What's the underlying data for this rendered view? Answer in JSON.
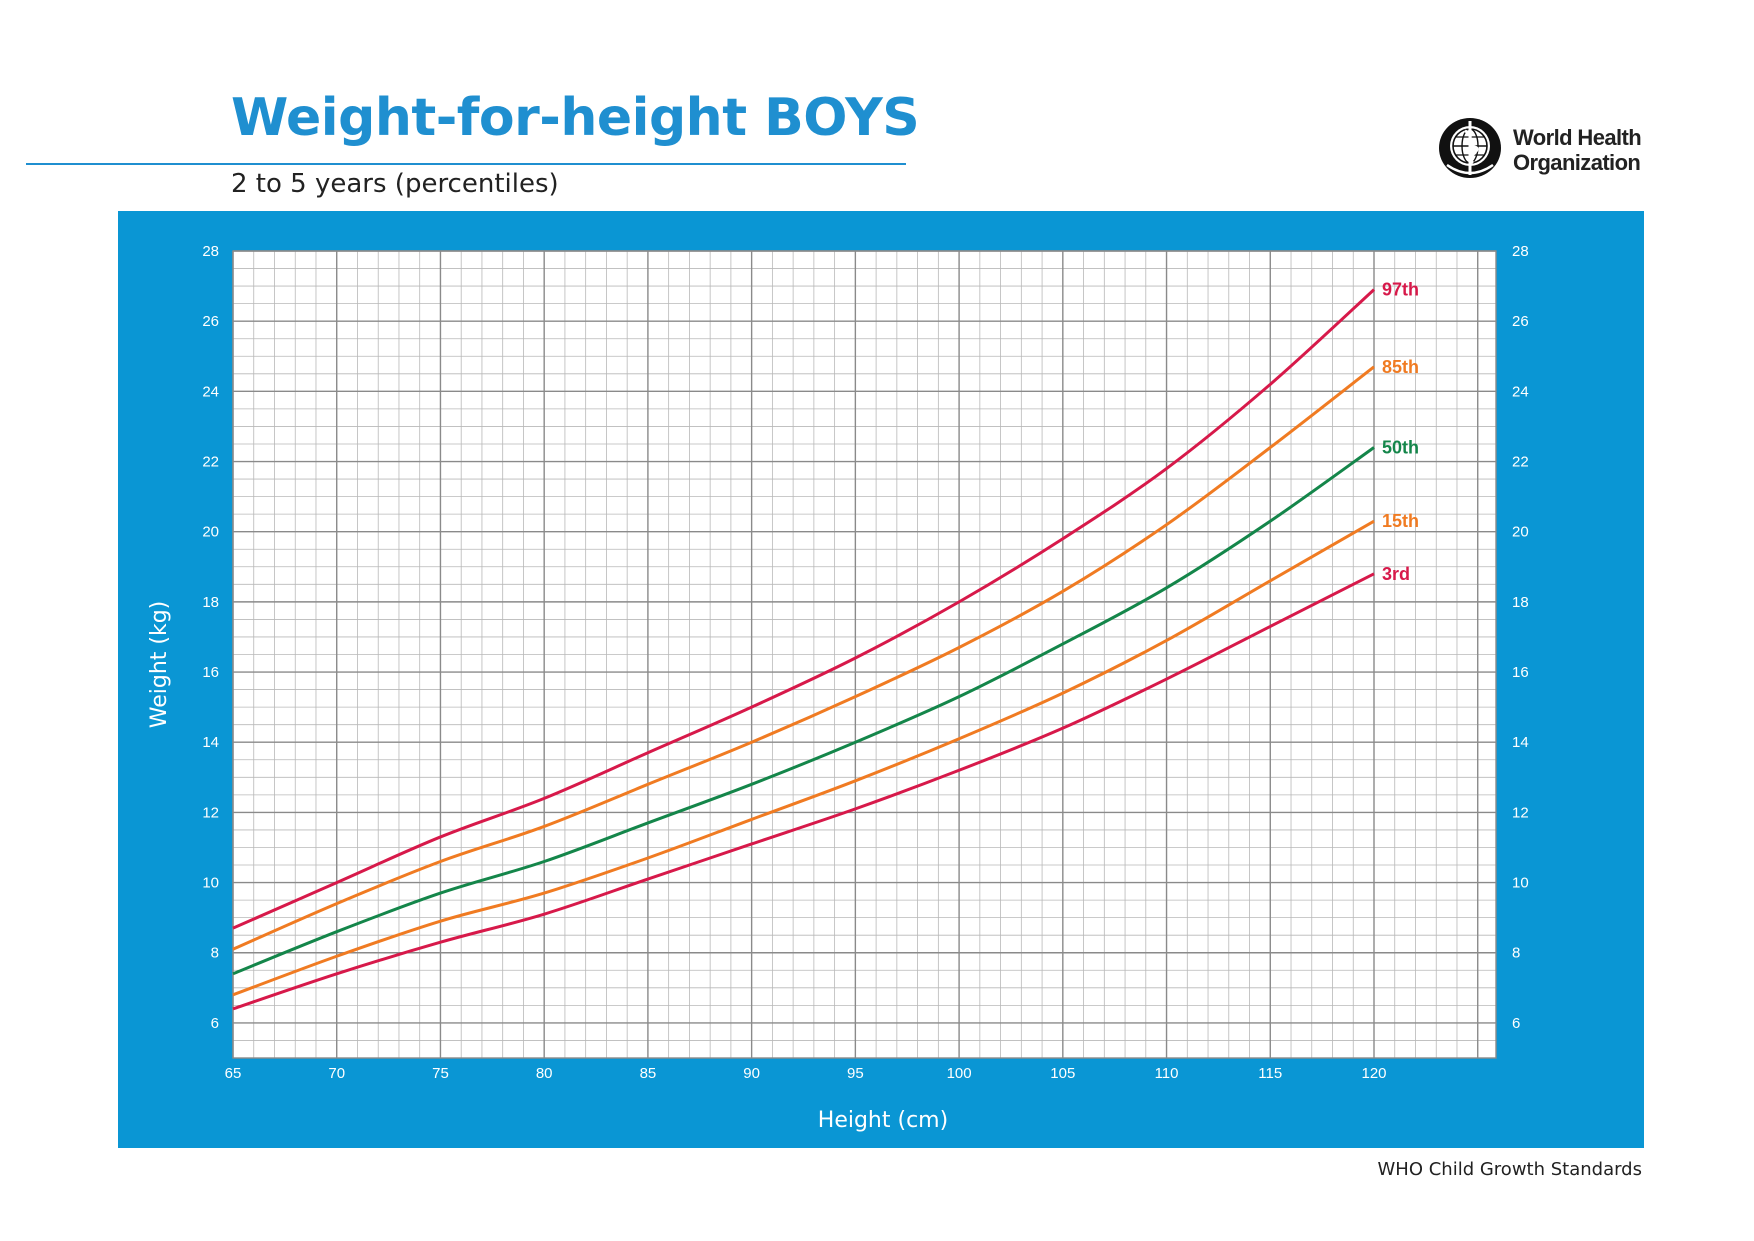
{
  "header": {
    "title": "Weight-for-height BOYS",
    "subtitle": "2 to 5 years (percentiles)",
    "logo_line1": "World Health",
    "logo_line2": "Organization"
  },
  "footer": {
    "text": "WHO Child Growth Standards"
  },
  "chart_data": {
    "type": "line",
    "xlabel": "Height (cm)",
    "ylabel": "Weight (kg)",
    "xlim": [
      65,
      120
    ],
    "ylim": [
      5,
      28
    ],
    "xticks": [
      65,
      70,
      75,
      80,
      85,
      90,
      95,
      100,
      105,
      110,
      115,
      120
    ],
    "yticks": [
      6,
      8,
      10,
      12,
      14,
      16,
      18,
      20,
      22,
      24,
      26,
      28
    ],
    "x_minor_step": 1,
    "y_minor_step": 0.5,
    "grid": true,
    "legend": "labels at line ends (right)",
    "x": [
      65,
      70,
      75,
      80,
      85,
      90,
      95,
      100,
      105,
      110,
      115,
      120
    ],
    "series": [
      {
        "name": "97th",
        "color": "#d7194a",
        "values": [
          8.7,
          10.0,
          11.3,
          12.4,
          13.7,
          15.0,
          16.4,
          18.0,
          19.8,
          21.8,
          24.2,
          26.9
        ]
      },
      {
        "name": "85th",
        "color": "#f07b22",
        "values": [
          8.1,
          9.4,
          10.6,
          11.6,
          12.8,
          14.0,
          15.3,
          16.7,
          18.3,
          20.2,
          22.4,
          24.7
        ]
      },
      {
        "name": "50th",
        "color": "#14864a",
        "values": [
          7.4,
          8.6,
          9.7,
          10.6,
          11.7,
          12.8,
          14.0,
          15.3,
          16.8,
          18.4,
          20.3,
          22.4
        ]
      },
      {
        "name": "15th",
        "color": "#f07b22",
        "values": [
          6.8,
          7.9,
          8.9,
          9.7,
          10.7,
          11.8,
          12.9,
          14.1,
          15.4,
          16.9,
          18.6,
          20.3
        ]
      },
      {
        "name": "3rd",
        "color": "#d7194a",
        "values": [
          6.4,
          7.4,
          8.3,
          9.1,
          10.1,
          11.1,
          12.1,
          13.2,
          14.4,
          15.8,
          17.3,
          18.8
        ]
      }
    ]
  }
}
